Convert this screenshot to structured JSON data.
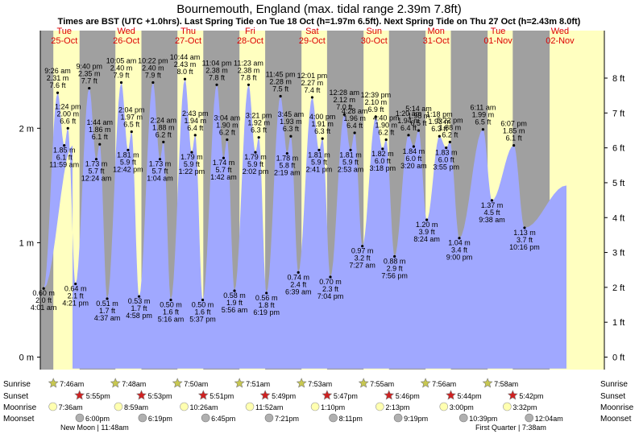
{
  "chart_data": {
    "type": "area",
    "title": "Bournemouth, England (max. tidal range 2.39m 7.8ft)",
    "subtitle": "Times are BST (UTC +1.0hrs). Last Spring Tide on Tue 18 Oct (h=1.97m 6.5ft). Next Spring Tide on Thu 27 Oct (h=2.43m 8.0ft)",
    "days": [
      {
        "dow": "Tue",
        "date": "25-Oct"
      },
      {
        "dow": "Wed",
        "date": "26-Oct"
      },
      {
        "dow": "Thu",
        "date": "27-Oct"
      },
      {
        "dow": "Fri",
        "date": "28-Oct"
      },
      {
        "dow": "Sat",
        "date": "29-Oct"
      },
      {
        "dow": "Sun",
        "date": "30-Oct"
      },
      {
        "dow": "Mon",
        "date": "31-Oct"
      },
      {
        "dow": "Tue",
        "date": "01-Nov"
      },
      {
        "dow": "Wed",
        "date": "02-Nov"
      }
    ],
    "y_left_ticks": [
      "0 m",
      "1 m",
      "2 m"
    ],
    "y_right_ticks": [
      "0 ft",
      "1 ft",
      "2 ft",
      "3 ft",
      "4 ft",
      "5 ft",
      "6 ft",
      "7 ft",
      "8 ft"
    ],
    "ylim_m": [
      -0.1,
      2.7
    ],
    "tides": [
      {
        "day": 0,
        "time": "4:01 am",
        "m": "0.60 m",
        "ft": "2.0 ft",
        "h": 0.6,
        "type": "low"
      },
      {
        "day": 0,
        "time": "9:26 am",
        "m": "2.31 m",
        "ft": "7.6 ft",
        "h": 2.31,
        "type": "high"
      },
      {
        "day": 0,
        "time": "11:59 am",
        "m": "1.85 m",
        "ft": "6.1 ft",
        "h": 1.85,
        "type": "low"
      },
      {
        "day": 0,
        "time": "1:24 pm",
        "m": "2.00 m",
        "ft": "6.6 ft",
        "h": 2.0,
        "type": "high"
      },
      {
        "day": 0,
        "time": "4:21 pm",
        "m": "0.64 m",
        "ft": "2.1 ft",
        "h": 0.64,
        "type": "low"
      },
      {
        "day": 0,
        "time": "9:40 pm",
        "m": "2.35 m",
        "ft": "7.7 ft",
        "h": 2.35,
        "type": "high"
      },
      {
        "day": 1,
        "time": "12:24 am",
        "m": "1.73 m",
        "ft": "5.7 ft",
        "h": 1.73,
        "type": "low"
      },
      {
        "day": 1,
        "time": "1:44 am",
        "m": "1.86 m",
        "ft": "6.1 ft",
        "h": 1.86,
        "type": "high"
      },
      {
        "day": 1,
        "time": "4:37 am",
        "m": "0.51 m",
        "ft": "1.7 ft",
        "h": 0.51,
        "type": "low"
      },
      {
        "day": 1,
        "time": "10:05 am",
        "m": "2.40 m",
        "ft": "7.9 ft",
        "h": 2.4,
        "type": "high"
      },
      {
        "day": 1,
        "time": "12:42 pm",
        "m": "1.81 m",
        "ft": "5.9 ft",
        "h": 1.81,
        "type": "low"
      },
      {
        "day": 1,
        "time": "2:04 pm",
        "m": "1.97 m",
        "ft": "6.5 ft",
        "h": 1.97,
        "type": "high"
      },
      {
        "day": 1,
        "time": "4:58 pm",
        "m": "0.53 m",
        "ft": "1.7 ft",
        "h": 0.53,
        "type": "low"
      },
      {
        "day": 1,
        "time": "10:22 pm",
        "m": "2.40 m",
        "ft": "7.9 ft",
        "h": 2.4,
        "type": "high"
      },
      {
        "day": 2,
        "time": "1:04 am",
        "m": "1.73 m",
        "ft": "5.7 ft",
        "h": 1.73,
        "type": "low"
      },
      {
        "day": 2,
        "time": "2:24 am",
        "m": "1.88 m",
        "ft": "6.2 ft",
        "h": 1.88,
        "type": "high"
      },
      {
        "day": 2,
        "time": "5:16 am",
        "m": "0.50 m",
        "ft": "1.6 ft",
        "h": 0.5,
        "type": "low"
      },
      {
        "day": 2,
        "time": "10:44 am",
        "m": "2.43 m",
        "ft": "8.0 ft",
        "h": 2.43,
        "type": "high"
      },
      {
        "day": 2,
        "time": "1:22 pm",
        "m": "1.79 m",
        "ft": "5.9 ft",
        "h": 1.79,
        "type": "low"
      },
      {
        "day": 2,
        "time": "2:43 pm",
        "m": "1.94 m",
        "ft": "6.4 ft",
        "h": 1.94,
        "type": "high"
      },
      {
        "day": 2,
        "time": "5:37 pm",
        "m": "0.50 m",
        "ft": "1.6 ft",
        "h": 0.5,
        "type": "low"
      },
      {
        "day": 2,
        "time": "11:04 pm",
        "m": "2.38 m",
        "ft": "7.8 ft",
        "h": 2.38,
        "type": "high"
      },
      {
        "day": 3,
        "time": "1:42 am",
        "m": "1.74 m",
        "ft": "5.7 ft",
        "h": 1.74,
        "type": "low"
      },
      {
        "day": 3,
        "time": "3:04 am",
        "m": "1.90 m",
        "ft": "6.2 ft",
        "h": 1.9,
        "type": "high"
      },
      {
        "day": 3,
        "time": "5:56 am",
        "m": "0.58 m",
        "ft": "1.9 ft",
        "h": 0.58,
        "type": "low"
      },
      {
        "day": 3,
        "time": "11:23 am",
        "m": "2.38 m",
        "ft": "7.8 ft",
        "h": 2.38,
        "type": "high"
      },
      {
        "day": 3,
        "time": "2:02 pm",
        "m": "1.79 m",
        "ft": "5.9 ft",
        "h": 1.79,
        "type": "low"
      },
      {
        "day": 3,
        "time": "3:21 pm",
        "m": "1.92 m",
        "ft": "6.3 ft",
        "h": 1.92,
        "type": "high"
      },
      {
        "day": 3,
        "time": "6:19 pm",
        "m": "0.56 m",
        "ft": "1.8 ft",
        "h": 0.56,
        "type": "low"
      },
      {
        "day": 3,
        "time": "11:45 pm",
        "m": "2.28 m",
        "ft": "7.5 ft",
        "h": 2.28,
        "type": "high"
      },
      {
        "day": 4,
        "time": "2:19 am",
        "m": "1.78 m",
        "ft": "5.8 ft",
        "h": 1.78,
        "type": "low"
      },
      {
        "day": 4,
        "time": "3:45 am",
        "m": "1.93 m",
        "ft": "6.3 ft",
        "h": 1.93,
        "type": "high"
      },
      {
        "day": 4,
        "time": "6:39 am",
        "m": "0.74 m",
        "ft": "2.4 ft",
        "h": 0.74,
        "type": "low"
      },
      {
        "day": 4,
        "time": "12:01 pm",
        "m": "2.27 m",
        "ft": "7.4 ft",
        "h": 2.27,
        "type": "high"
      },
      {
        "day": 4,
        "time": "2:41 pm",
        "m": "1.81 m",
        "ft": "5.9 ft",
        "h": 1.81,
        "type": "low"
      },
      {
        "day": 4,
        "time": "4:00 pm",
        "m": "1.91 m",
        "ft": "6.3 ft",
        "h": 1.91,
        "type": "high"
      },
      {
        "day": 4,
        "time": "7:04 pm",
        "m": "0.70 m",
        "ft": "2.3 ft",
        "h": 0.7,
        "type": "low"
      },
      {
        "day": 5,
        "time": "12:28 am",
        "m": "2.12 m",
        "ft": "7.0 ft",
        "h": 2.12,
        "type": "high"
      },
      {
        "day": 5,
        "time": "2:53 am",
        "m": "1.81 m",
        "ft": "5.9 ft",
        "h": 1.81,
        "type": "low"
      },
      {
        "day": 5,
        "time": "4:28 am",
        "m": "1.96 m",
        "ft": "6.4 ft",
        "h": 1.96,
        "type": "high"
      },
      {
        "day": 5,
        "time": "7:27 am",
        "m": "0.97 m",
        "ft": "3.2 ft",
        "h": 0.97,
        "type": "low"
      },
      {
        "day": 5,
        "time": "12:39 pm",
        "m": "2.10 m",
        "ft": "6.9 ft",
        "h": 2.1,
        "type": "high"
      },
      {
        "day": 5,
        "time": "3:18 pm",
        "m": "1.82 m",
        "ft": "6.0 ft",
        "h": 1.82,
        "type": "low"
      },
      {
        "day": 5,
        "time": "4:40 pm",
        "m": "1.90 m",
        "ft": "6.2 ft",
        "h": 1.9,
        "type": "high"
      },
      {
        "day": 5,
        "time": "7:56 pm",
        "m": "0.88 m",
        "ft": "2.9 ft",
        "h": 0.88,
        "type": "low"
      },
      {
        "day": 6,
        "time": "1:20 am",
        "m": "1.94 m",
        "ft": "6.4 ft",
        "h": 1.94,
        "type": "high"
      },
      {
        "day": 6,
        "time": "3:20 am",
        "m": "1.84 m",
        "ft": "6.0 ft",
        "h": 1.84,
        "type": "low"
      },
      {
        "day": 6,
        "time": "5:14 am",
        "m": "1.98 m",
        "ft": "6.5 ft",
        "h": 1.98,
        "type": "high"
      },
      {
        "day": 6,
        "time": "8:24 am",
        "m": "1.20 m",
        "ft": "3.9 ft",
        "h": 1.2,
        "type": "low"
      },
      {
        "day": 6,
        "time": "1:18 pm",
        "m": "1.93 m",
        "ft": "6.3 ft",
        "h": 1.93,
        "type": "high"
      },
      {
        "day": 6,
        "time": "3:55 pm",
        "m": "1.83 m",
        "ft": "6.0 ft",
        "h": 1.83,
        "type": "low"
      },
      {
        "day": 6,
        "time": "5:22 pm",
        "m": "1.88 m",
        "ft": "6.2 ft",
        "h": 1.88,
        "type": "high"
      },
      {
        "day": 6,
        "time": "9:00 pm",
        "m": "1.04 m",
        "ft": "3.4 ft",
        "h": 1.04,
        "type": "low"
      },
      {
        "day": 7,
        "time": "6:11 am",
        "m": "1.99 m",
        "ft": "6.5 ft",
        "h": 1.99,
        "type": "high"
      },
      {
        "day": 7,
        "time": "9:38 am",
        "m": "1.37 m",
        "ft": "4.5 ft",
        "h": 1.37,
        "type": "low"
      },
      {
        "day": 7,
        "time": "6:07 pm",
        "m": "1.85 m",
        "ft": "6.1 ft",
        "h": 1.85,
        "type": "high"
      },
      {
        "day": 7,
        "time": "10:16 pm",
        "m": "1.13 m",
        "ft": "3.7 ft",
        "h": 1.13,
        "type": "low"
      }
    ],
    "rows": {
      "sunrise_label": "Sunrise",
      "sunset_label": "Sunset",
      "moonrise_label": "Moonrise",
      "moonset_label": "Moonset",
      "sunrise": [
        "7:46am",
        "7:48am",
        "7:50am",
        "7:51am",
        "7:53am",
        "7:55am",
        "7:56am",
        "7:58am"
      ],
      "sunset": [
        "5:55pm",
        "5:53pm",
        "5:51pm",
        "5:49pm",
        "5:47pm",
        "5:46pm",
        "5:44pm",
        "5:42pm"
      ],
      "moonrise": [
        "7:36am",
        "8:59am",
        "10:26am",
        "11:52am",
        "1:10pm",
        "2:13pm",
        "3:00pm",
        "3:32pm"
      ],
      "moonset": [
        "6:00pm",
        "6:19pm",
        "6:45pm",
        "7:21pm",
        "8:11pm",
        "9:19pm",
        "10:39pm",
        "12:04am"
      ],
      "moon_events": [
        "New Moon | 11:48am",
        "First Quarter | 7:38am"
      ]
    },
    "colors": {
      "water": "#a0a8ff",
      "night": "#a0a0a0",
      "day": "#ffffc0",
      "day_label": "#d00000",
      "sun_icon": "#c8c850",
      "sunset_icon": "#d02020",
      "moonrise_icon": "#ffffb0",
      "moonset_icon": "#b0b0b0"
    }
  }
}
